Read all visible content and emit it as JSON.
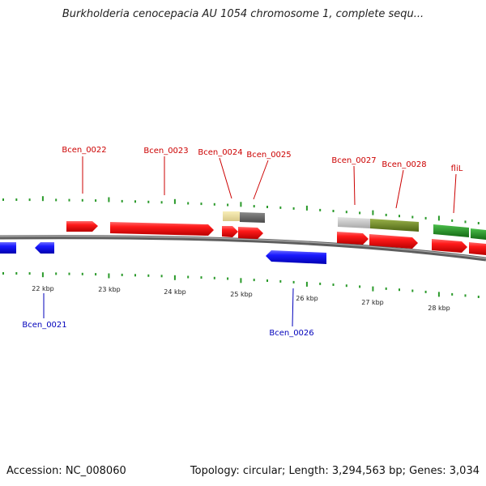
{
  "title": "Burkholderia cenocepacia AU 1054 chromosome 1, complete sequ...",
  "footer": {
    "accession": "Accession: NC_008060",
    "stats": "Topology: circular; Length: 3,294,563 bp; Genes: 3,034"
  },
  "colors": {
    "forward_cds": "#ee0000",
    "reverse_cds": "#1010ee",
    "forward_label": "#cc0000",
    "reverse_label": "#0000bb",
    "tick": "#2a9a2a",
    "backbone": "#888888"
  },
  "scale_labels": [
    "22 kbp",
    "23 kbp",
    "24 kbp",
    "25 kbp",
    "26 kbp",
    "27 kbp",
    "28 kbp"
  ],
  "forward_labels": [
    "Bcen_0022",
    "Bcen_0023",
    "Bcen_0024",
    "Bcen_0025",
    "Bcen_0027",
    "Bcen_0028",
    "fliL"
  ],
  "reverse_labels": [
    "Bcen_0021",
    "Bcen_0026"
  ]
}
